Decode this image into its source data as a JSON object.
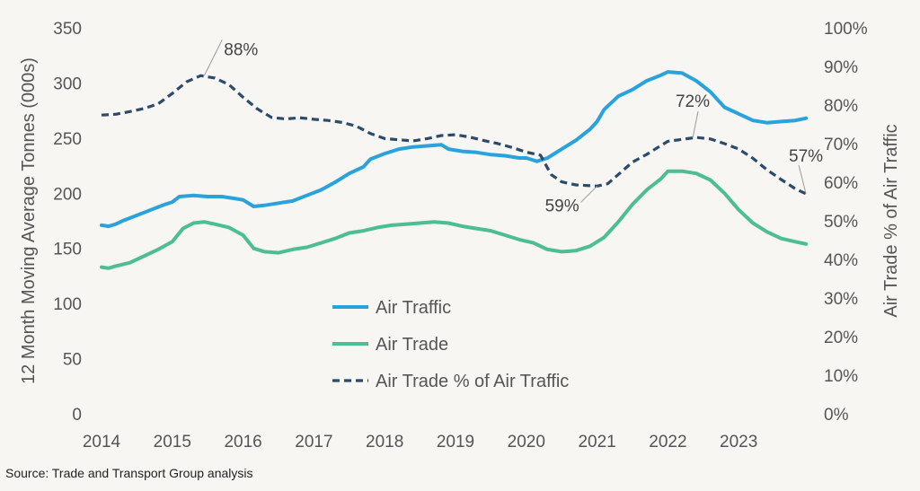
{
  "chart_data": {
    "type": "line",
    "y_left_label": "12 Month Moving Average Tonnes (000s)",
    "y_right_label": "Air Trade % of Air Traffic",
    "ylim_left": [
      0,
      350
    ],
    "ylim_right": [
      0,
      100
    ],
    "xlim": [
      2014,
      2024
    ],
    "x_ticks": [
      "2014",
      "2015",
      "2016",
      "2017",
      "2018",
      "2019",
      "2020",
      "2021",
      "2022",
      "2023"
    ],
    "y_left_ticks": [
      "0",
      "50",
      "100",
      "150",
      "200",
      "250",
      "300",
      "350"
    ],
    "y_right_ticks": [
      "0%",
      "10%",
      "20%",
      "30%",
      "40%",
      "50%",
      "60%",
      "70%",
      "80%",
      "90%",
      "100%"
    ],
    "grid": false,
    "legend": "bottom-center",
    "series": [
      {
        "name": "Air Traffic",
        "axis": "left",
        "color": "#2aa2db",
        "style": "solid",
        "points": [
          [
            2014.0,
            171
          ],
          [
            2014.1,
            170
          ],
          [
            2014.2,
            172
          ],
          [
            2014.3,
            175
          ],
          [
            2014.5,
            180
          ],
          [
            2014.7,
            185
          ],
          [
            2014.9,
            190
          ],
          [
            2015.0,
            192
          ],
          [
            2015.1,
            197
          ],
          [
            2015.3,
            198
          ],
          [
            2015.5,
            197
          ],
          [
            2015.7,
            197
          ],
          [
            2015.9,
            195
          ],
          [
            2016.0,
            194
          ],
          [
            2016.15,
            188
          ],
          [
            2016.3,
            189
          ],
          [
            2016.5,
            191
          ],
          [
            2016.7,
            193
          ],
          [
            2016.9,
            198
          ],
          [
            2017.1,
            203
          ],
          [
            2017.3,
            210
          ],
          [
            2017.5,
            218
          ],
          [
            2017.7,
            224
          ],
          [
            2017.8,
            231
          ],
          [
            2018.0,
            236
          ],
          [
            2018.2,
            240
          ],
          [
            2018.4,
            242
          ],
          [
            2018.6,
            243
          ],
          [
            2018.8,
            244
          ],
          [
            2018.9,
            240
          ],
          [
            2019.1,
            238
          ],
          [
            2019.3,
            237
          ],
          [
            2019.5,
            235
          ],
          [
            2019.7,
            234
          ],
          [
            2019.9,
            232
          ],
          [
            2020.0,
            232
          ],
          [
            2020.15,
            229
          ],
          [
            2020.3,
            232
          ],
          [
            2020.5,
            240
          ],
          [
            2020.7,
            248
          ],
          [
            2020.9,
            258
          ],
          [
            2021.0,
            265
          ],
          [
            2021.1,
            276
          ],
          [
            2021.3,
            288
          ],
          [
            2021.5,
            294
          ],
          [
            2021.7,
            302
          ],
          [
            2021.9,
            307
          ],
          [
            2022.0,
            310
          ],
          [
            2022.2,
            309
          ],
          [
            2022.4,
            302
          ],
          [
            2022.6,
            292
          ],
          [
            2022.8,
            278
          ],
          [
            2023.0,
            272
          ],
          [
            2023.2,
            266
          ],
          [
            2023.4,
            264
          ],
          [
            2023.6,
            265
          ],
          [
            2023.8,
            266
          ],
          [
            2023.95,
            268
          ]
        ]
      },
      {
        "name": "Air Trade",
        "axis": "left",
        "color": "#4cbe92",
        "style": "solid",
        "points": [
          [
            2014.0,
            133
          ],
          [
            2014.1,
            132
          ],
          [
            2014.2,
            134
          ],
          [
            2014.4,
            137
          ],
          [
            2014.6,
            143
          ],
          [
            2014.8,
            149
          ],
          [
            2015.0,
            156
          ],
          [
            2015.15,
            168
          ],
          [
            2015.3,
            173
          ],
          [
            2015.45,
            174
          ],
          [
            2015.6,
            172
          ],
          [
            2015.8,
            169
          ],
          [
            2016.0,
            162
          ],
          [
            2016.15,
            150
          ],
          [
            2016.3,
            147
          ],
          [
            2016.5,
            146
          ],
          [
            2016.7,
            149
          ],
          [
            2016.9,
            151
          ],
          [
            2017.1,
            155
          ],
          [
            2017.3,
            159
          ],
          [
            2017.5,
            164
          ],
          [
            2017.7,
            166
          ],
          [
            2017.9,
            169
          ],
          [
            2018.1,
            171
          ],
          [
            2018.3,
            172
          ],
          [
            2018.5,
            173
          ],
          [
            2018.7,
            174
          ],
          [
            2018.9,
            173
          ],
          [
            2019.1,
            170
          ],
          [
            2019.3,
            168
          ],
          [
            2019.5,
            166
          ],
          [
            2019.7,
            162
          ],
          [
            2019.9,
            158
          ],
          [
            2020.1,
            155
          ],
          [
            2020.3,
            149
          ],
          [
            2020.5,
            147
          ],
          [
            2020.7,
            148
          ],
          [
            2020.9,
            152
          ],
          [
            2021.1,
            160
          ],
          [
            2021.3,
            174
          ],
          [
            2021.5,
            190
          ],
          [
            2021.7,
            203
          ],
          [
            2021.9,
            213
          ],
          [
            2022.0,
            220
          ],
          [
            2022.2,
            220
          ],
          [
            2022.4,
            218
          ],
          [
            2022.6,
            212
          ],
          [
            2022.8,
            200
          ],
          [
            2023.0,
            185
          ],
          [
            2023.2,
            173
          ],
          [
            2023.4,
            165
          ],
          [
            2023.6,
            159
          ],
          [
            2023.8,
            156
          ],
          [
            2023.95,
            154
          ]
        ]
      },
      {
        "name": "Air Trade % of Air Traffic",
        "axis": "right",
        "color": "#2c4a6b",
        "style": "dashed",
        "points": [
          [
            2014.0,
            77.4
          ],
          [
            2014.2,
            77.6
          ],
          [
            2014.4,
            78.3
          ],
          [
            2014.6,
            79.1
          ],
          [
            2014.8,
            80.3
          ],
          [
            2015.0,
            83
          ],
          [
            2015.2,
            86
          ],
          [
            2015.4,
            87.6
          ],
          [
            2015.6,
            87.0
          ],
          [
            2015.8,
            85.3
          ],
          [
            2016.0,
            82
          ],
          [
            2016.2,
            79
          ],
          [
            2016.4,
            76.8
          ],
          [
            2016.6,
            76.4
          ],
          [
            2016.8,
            76.7
          ],
          [
            2017.0,
            76.3
          ],
          [
            2017.2,
            76.0
          ],
          [
            2017.4,
            75.5
          ],
          [
            2017.6,
            74.5
          ],
          [
            2017.8,
            72.6
          ],
          [
            2018.0,
            71.3
          ],
          [
            2018.2,
            71.0
          ],
          [
            2018.4,
            70.7
          ],
          [
            2018.6,
            71.3
          ],
          [
            2018.8,
            72.1
          ],
          [
            2019.0,
            72.3
          ],
          [
            2019.2,
            71.7
          ],
          [
            2019.4,
            70.8
          ],
          [
            2019.6,
            70.0
          ],
          [
            2019.8,
            69.0
          ],
          [
            2020.0,
            67.8
          ],
          [
            2020.2,
            67.0
          ],
          [
            2020.35,
            62
          ],
          [
            2020.5,
            60.1
          ],
          [
            2020.7,
            59.3
          ],
          [
            2020.9,
            59.1
          ],
          [
            2021.0,
            59.0
          ],
          [
            2021.15,
            59.6
          ],
          [
            2021.3,
            62
          ],
          [
            2021.5,
            65.2
          ],
          [
            2021.7,
            67.2
          ],
          [
            2021.9,
            69.5
          ],
          [
            2022.0,
            70.6
          ],
          [
            2022.2,
            71.1
          ],
          [
            2022.4,
            71.6
          ],
          [
            2022.6,
            71.2
          ],
          [
            2022.8,
            70.0
          ],
          [
            2023.0,
            68.6
          ],
          [
            2023.2,
            66.2
          ],
          [
            2023.4,
            63.2
          ],
          [
            2023.6,
            60.7
          ],
          [
            2023.8,
            58.3
          ],
          [
            2023.95,
            57.0
          ]
        ]
      }
    ],
    "annotations": [
      {
        "text": "88%",
        "x": 2015.45,
        "y": 87.6,
        "axis": "right"
      },
      {
        "text": "59%",
        "x": 2021.0,
        "y": 59.0,
        "axis": "right"
      },
      {
        "text": "72%",
        "x": 2022.35,
        "y": 71.4,
        "axis": "right"
      },
      {
        "text": "57%",
        "x": 2023.95,
        "y": 57.0,
        "axis": "right"
      }
    ]
  },
  "source": "Source: Trade and Transport Group analysis"
}
